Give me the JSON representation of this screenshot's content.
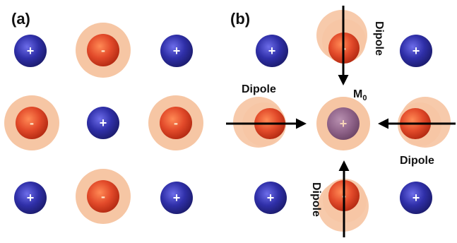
{
  "panels": {
    "a": {
      "label": "(a)"
    },
    "b": {
      "label": "(b)"
    }
  },
  "signs": {
    "plus": "+",
    "minus": "-"
  },
  "center": {
    "label": "M",
    "subscript": "0"
  },
  "dipole_label": "Dipole",
  "colors": {
    "cation": "#2f2fa8",
    "anion": "#e24a2a",
    "halo": "#f6c6a4",
    "center_ion": "#9a6a8e",
    "arrow": "#000000"
  }
}
